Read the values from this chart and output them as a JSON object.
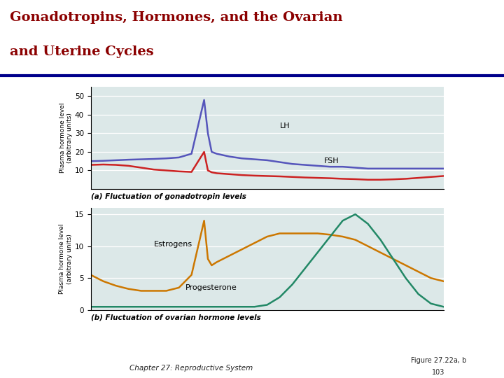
{
  "title_line1": "Gonadotropins, Hormones, and the Ovarian",
  "title_line2": "and Uterine Cycles",
  "title_color": "#8B0000",
  "title_fontsize": 14,
  "separator_color": "#00008B",
  "panel_bg": "#dce8e8",
  "caption_a": "(a) Fluctuation of gonadotropin levels",
  "caption_b": "(b) Fluctuation of ovarian hormone levels",
  "footer_left": "Chapter 27: Reproductive System",
  "footer_right": "Figure 27.22a, b\n103",
  "ylabel": "Plasma hormone level\n(arbitrary units)",
  "lh_color": "#5555bb",
  "fsh_color": "#cc2222",
  "estrogen_color": "#cc7700",
  "progesterone_color": "#228866",
  "x": [
    0,
    1,
    2,
    3,
    4,
    5,
    6,
    7,
    8,
    9,
    9.3,
    9.6,
    10,
    11,
    12,
    13,
    14,
    15,
    16,
    17,
    18,
    19,
    20,
    21,
    22,
    23,
    24,
    25,
    26,
    27,
    28
  ],
  "lh": [
    15,
    15.2,
    15.5,
    15.8,
    16,
    16.2,
    16.5,
    17,
    19,
    48,
    30,
    20,
    19,
    17.5,
    16.5,
    16,
    15.5,
    14.5,
    13.5,
    13,
    12.5,
    12,
    12,
    11.5,
    11,
    11,
    11,
    11,
    11,
    11,
    11
  ],
  "fsh": [
    13,
    13.2,
    13,
    12.5,
    11.5,
    10.5,
    10,
    9.5,
    9.2,
    20,
    10,
    9,
    8.5,
    8,
    7.5,
    7.2,
    7,
    6.8,
    6.5,
    6.2,
    6,
    5.8,
    5.5,
    5.3,
    5,
    5,
    5.2,
    5.5,
    6,
    6.5,
    7
  ],
  "estrogen": [
    5.5,
    4.5,
    3.8,
    3.3,
    3,
    3,
    3,
    3.5,
    5.5,
    14,
    8,
    7,
    7.5,
    8.5,
    9.5,
    10.5,
    11.5,
    12,
    12,
    12,
    12,
    11.8,
    11.5,
    11,
    10,
    9,
    8,
    7,
    6,
    5,
    4.5
  ],
  "progesterone": [
    0.5,
    0.5,
    0.5,
    0.5,
    0.5,
    0.5,
    0.5,
    0.5,
    0.5,
    0.5,
    0.5,
    0.5,
    0.5,
    0.5,
    0.5,
    0.5,
    0.8,
    2,
    4,
    6.5,
    9,
    11.5,
    14,
    15,
    13.5,
    11,
    8,
    5,
    2.5,
    1,
    0.5
  ],
  "lh_ylim": [
    0,
    55
  ],
  "lh_yticks": [
    10,
    20,
    30,
    40,
    50
  ],
  "hormone_ylim": [
    0,
    16
  ],
  "hormone_yticks": [
    0,
    5,
    10,
    15
  ]
}
